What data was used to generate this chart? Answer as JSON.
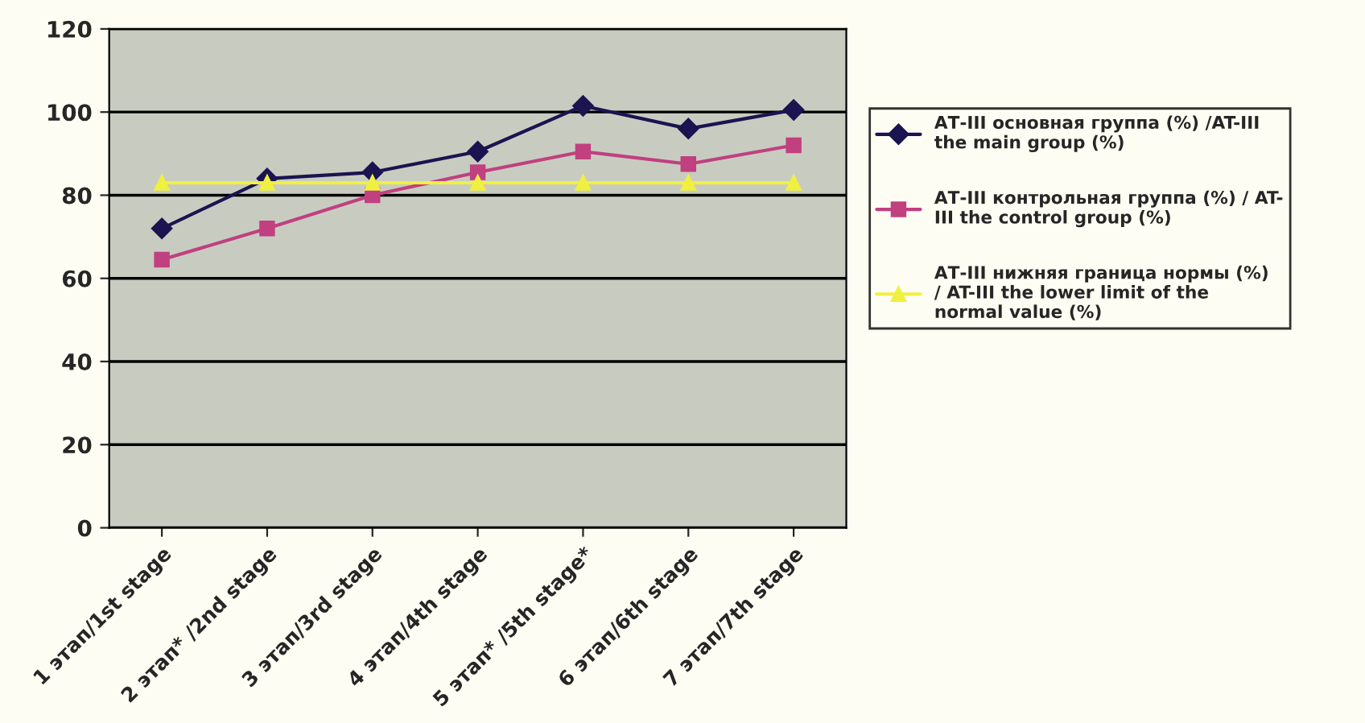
{
  "chart_data": {
    "type": "line",
    "categories": [
      "1 этап/1st stage",
      "2 этап* /2nd stage",
      "3 этап/3rd stage",
      "4 этап/4th stage",
      "5 этап* /5th stage*",
      "6 этап/6th stage",
      "7 этап/7th stage"
    ],
    "series": [
      {
        "name": "АТ-III основная группа (%) /AT-III\nthe main group (%)",
        "color": "#1a1450",
        "marker": "diamond",
        "values": [
          72,
          84,
          85.5,
          90.5,
          101.5,
          96,
          100.5
        ]
      },
      {
        "name": "АТ-III контрольная группа (%) / AT-\nIII the control group (%)",
        "color": "#c04080",
        "marker": "square",
        "values": [
          64.5,
          72,
          80,
          85.5,
          90.5,
          87.5,
          92
        ]
      },
      {
        "name": "АТ-III нижняя граница нормы (%)\n/ AT-III the lower limit of the\nnormal value (%)",
        "color": "#f0f040",
        "marker": "triangle",
        "values": [
          83,
          83,
          83,
          83,
          83,
          83,
          83
        ]
      }
    ],
    "ylim": [
      0,
      120
    ],
    "yticks": [
      0,
      20,
      40,
      60,
      80,
      100,
      120
    ],
    "grid": "y",
    "legend": "right",
    "line_style": "solid"
  }
}
